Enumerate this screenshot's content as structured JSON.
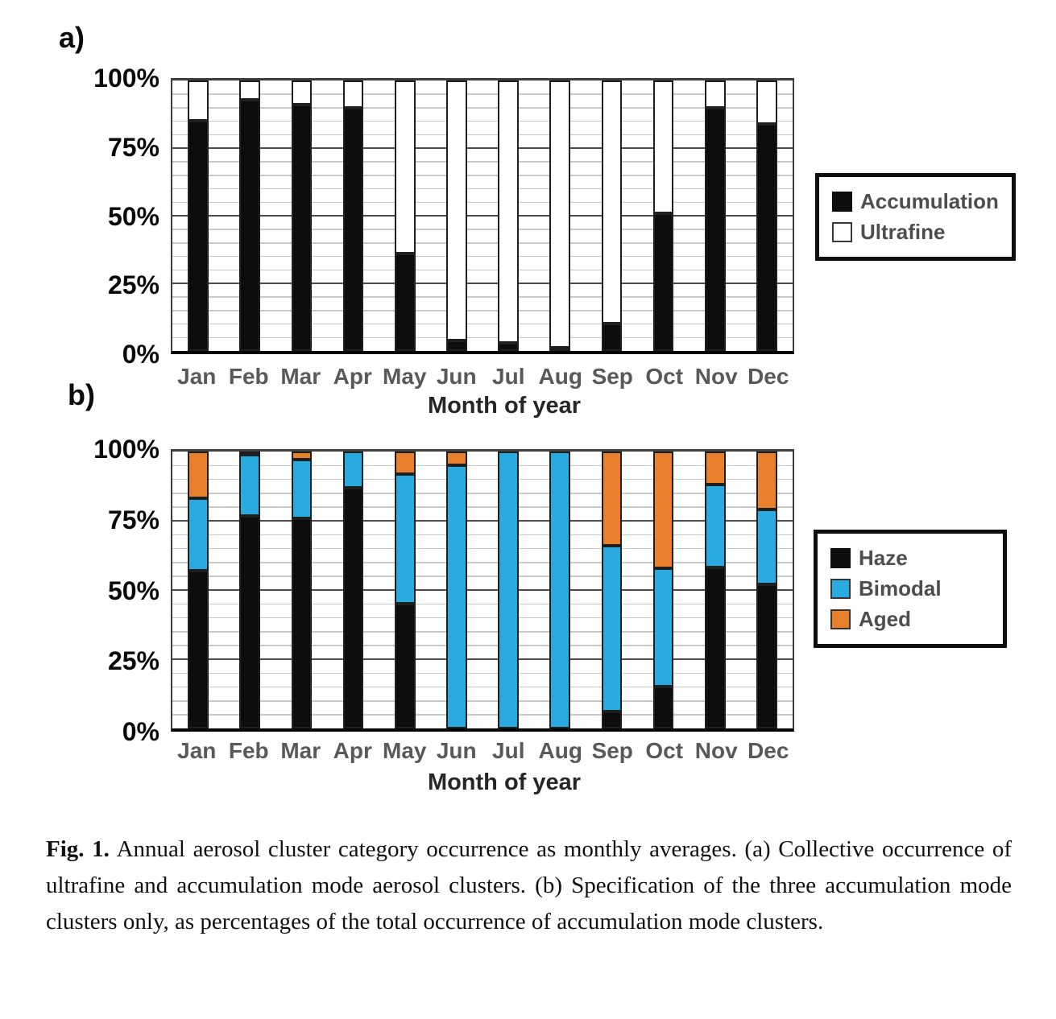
{
  "panels": {
    "a_label": "a)",
    "b_label": "b)"
  },
  "chart_data": [
    {
      "type": "bar",
      "panel": "a",
      "stacked": true,
      "grid": "minor 5%, major 25%",
      "legend_position": "right",
      "xlabel": "Month of year",
      "ylim": [
        0,
        100
      ],
      "yticks": [
        "100%",
        "75%",
        "50%",
        "25%",
        "0%"
      ],
      "categories": [
        "Jan",
        "Feb",
        "Mar",
        "Apr",
        "May",
        "Jun",
        "Jul",
        "Aug",
        "Sep",
        "Oct",
        "Nov",
        "Dec"
      ],
      "series": [
        {
          "name": "Accumulation",
          "color": "#0d0d0d",
          "swatch_border": "",
          "values": [
            85,
            93,
            91,
            90,
            36,
            4,
            3,
            1,
            10,
            51,
            90,
            84
          ]
        },
        {
          "name": "Ultrafine",
          "color": "#ffffff",
          "swatch_border": "#3a3a3a",
          "values": [
            15,
            7,
            9,
            10,
            64,
            96,
            97,
            99,
            90,
            49,
            10,
            16
          ]
        }
      ]
    },
    {
      "type": "bar",
      "panel": "b",
      "stacked": true,
      "grid": "minor 5%, major 25%",
      "legend_position": "right",
      "xlabel": "Month of year",
      "ylim": [
        0,
        100
      ],
      "yticks": [
        "100%",
        "75%",
        "50%",
        "25%",
        "0%"
      ],
      "categories": [
        "Jan",
        "Feb",
        "Mar",
        "Apr",
        "May",
        "Jun",
        "Jul",
        "Aug",
        "Sep",
        "Oct",
        "Nov",
        "Dec"
      ],
      "series": [
        {
          "name": "Haze",
          "color": "#0d0d0d",
          "swatch_border": "",
          "values": [
            57,
            77,
            76,
            87,
            45,
            0,
            0,
            0,
            6,
            15,
            58,
            52
          ]
        },
        {
          "name": "Bimodal",
          "color": "#29abe2",
          "swatch_border": "#333333",
          "values": [
            26,
            22,
            21,
            13,
            47,
            95,
            100,
            100,
            60,
            43,
            30,
            27
          ]
        },
        {
          "name": "Aged",
          "color": "#e8802b",
          "swatch_border": "#333333",
          "values": [
            17,
            1,
            3,
            0,
            8,
            5,
            0,
            0,
            34,
            42,
            12,
            21
          ]
        }
      ]
    }
  ],
  "caption": {
    "label": "Fig. 1.",
    "text": "Annual aerosol cluster category occurrence as monthly averages. (a) Collective occurrence of ultrafine and accumulation mode aerosol clusters. (b) Specification of the three accumulation mode clusters only, as percentages of the total occurrence of accumulation mode clusters."
  }
}
